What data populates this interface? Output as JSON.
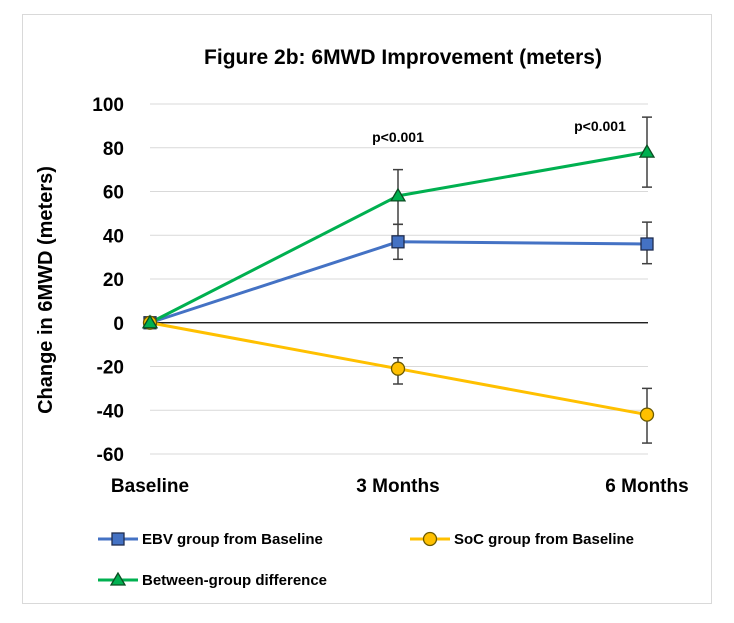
{
  "chart_data": {
    "type": "line",
    "title": "Figure 2b: 6MWD Improvement (meters)",
    "xlabel": "",
    "ylabel": "Change in 6MWD (meters)",
    "categories": [
      "Baseline",
      "3 Months",
      "6 Months"
    ],
    "ylim": [
      -60,
      100
    ],
    "yticks": [
      -60,
      -40,
      -20,
      0,
      20,
      40,
      60,
      80,
      100
    ],
    "ytick_labels": [
      "-60",
      "-40",
      "-20",
      "0",
      "20",
      "40",
      "60",
      "80",
      "100"
    ],
    "grid": true,
    "legend_position": "bottom",
    "series": [
      {
        "name": "EBV group from Baseline",
        "values": [
          0,
          37,
          36
        ],
        "error_low": [
          null,
          29,
          27
        ],
        "error_high": [
          null,
          45,
          46
        ],
        "color": "#4472c4",
        "marker": "square"
      },
      {
        "name": "SoC group from Baseline",
        "values": [
          0,
          -21,
          -42
        ],
        "error_low": [
          null,
          -28,
          -55
        ],
        "error_high": [
          null,
          -16,
          -30
        ],
        "color": "#ffc000",
        "marker": "circle"
      },
      {
        "name": "Between-group difference",
        "values": [
          0,
          58,
          78
        ],
        "error_low": [
          null,
          45,
          62
        ],
        "error_high": [
          null,
          70,
          94
        ],
        "color": "#00b050",
        "marker": "triangle"
      }
    ],
    "annotations": [
      {
        "category": "3 Months",
        "text": "p<0.001"
      },
      {
        "category": "6 Months",
        "text": "p<0.001"
      }
    ]
  }
}
